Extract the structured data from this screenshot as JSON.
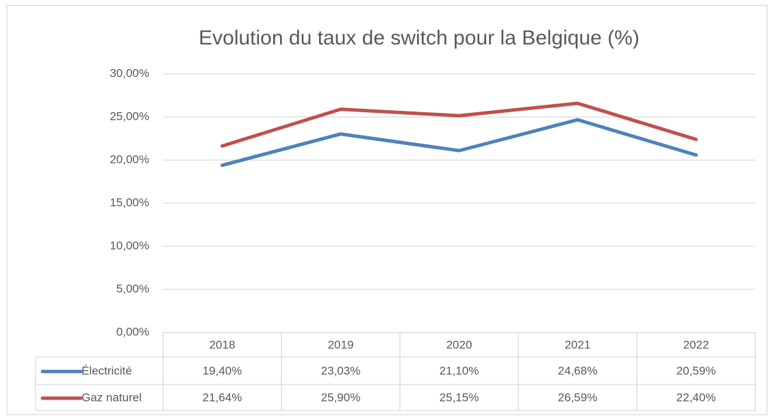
{
  "chart_data": {
    "type": "line",
    "title": "Evolution du taux de switch pour la Belgique (%)",
    "categories": [
      "2018",
      "2019",
      "2020",
      "2021",
      "2022"
    ],
    "series": [
      {
        "name": "Électricité",
        "color": "#4f81bd",
        "values": [
          19.4,
          23.03,
          21.1,
          24.68,
          20.59
        ],
        "value_labels": [
          "19,40%",
          "23,03%",
          "21,10%",
          "24,68%",
          "20,59%"
        ]
      },
      {
        "name": "Gaz naturel",
        "color": "#c0504d",
        "values": [
          21.64,
          25.9,
          25.15,
          26.59,
          22.4
        ],
        "value_labels": [
          "21,64%",
          "25,90%",
          "25,15%",
          "26,59%",
          "22,40%"
        ]
      }
    ],
    "ylim": [
      0,
      30
    ],
    "yticks": [
      {
        "value": 0,
        "label": "0,00%"
      },
      {
        "value": 5,
        "label": "5,00%"
      },
      {
        "value": 10,
        "label": "10,00%"
      },
      {
        "value": 15,
        "label": "15,00%"
      },
      {
        "value": 20,
        "label": "20,00%"
      },
      {
        "value": 25,
        "label": "25,00%"
      },
      {
        "value": 30,
        "label": "30,00%"
      }
    ],
    "grid": true
  }
}
